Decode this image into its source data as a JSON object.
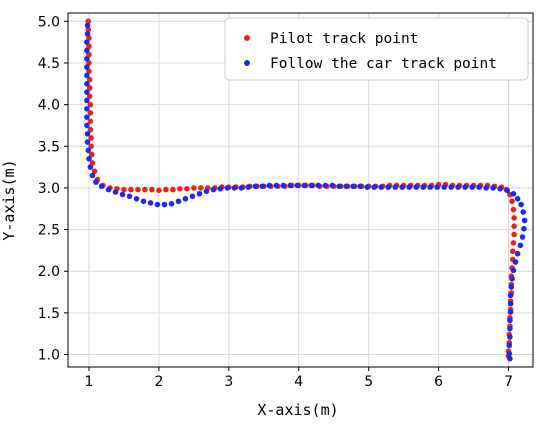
{
  "chart_data": {
    "type": "scatter",
    "title": "",
    "xlabel": "X-axis(m)",
    "ylabel": "Y-axis(m)",
    "xlim": [
      0.7,
      7.35
    ],
    "ylim": [
      0.85,
      5.1
    ],
    "xticks": [
      1,
      2,
      3,
      4,
      5,
      6,
      7
    ],
    "yticks": [
      1.0,
      1.5,
      2.0,
      2.5,
      3.0,
      3.5,
      4.0,
      4.5,
      5.0
    ],
    "xtick_labels": [
      "1",
      "2",
      "3",
      "4",
      "5",
      "6",
      "7"
    ],
    "ytick_labels": [
      "1.0",
      "1.5",
      "2.0",
      "2.5",
      "3.0",
      "3.5",
      "4.0",
      "4.5",
      "5.0"
    ],
    "grid": true,
    "legend_position": "top-right",
    "series": [
      {
        "name": "Pilot track point",
        "color": "#e8231c",
        "points": [
          [
            0.99,
            5.0
          ],
          [
            0.99,
            4.9
          ],
          [
            1.0,
            4.8
          ],
          [
            1.0,
            4.7
          ],
          [
            1.0,
            4.6
          ],
          [
            1.0,
            4.5
          ],
          [
            1.0,
            4.4
          ],
          [
            1.01,
            4.3
          ],
          [
            1.01,
            4.2
          ],
          [
            1.01,
            4.1
          ],
          [
            1.02,
            4.0
          ],
          [
            1.02,
            3.9
          ],
          [
            1.02,
            3.8
          ],
          [
            1.02,
            3.7
          ],
          [
            1.03,
            3.6
          ],
          [
            1.03,
            3.5
          ],
          [
            1.04,
            3.4
          ],
          [
            1.05,
            3.3
          ],
          [
            1.08,
            3.2
          ],
          [
            1.12,
            3.1
          ],
          [
            1.2,
            3.03
          ],
          [
            1.3,
            3.0
          ],
          [
            1.4,
            2.99
          ],
          [
            1.5,
            2.98
          ],
          [
            1.6,
            2.98
          ],
          [
            1.7,
            2.98
          ],
          [
            1.8,
            2.98
          ],
          [
            1.9,
            2.98
          ],
          [
            2.0,
            2.97
          ],
          [
            2.1,
            2.98
          ],
          [
            2.2,
            2.98
          ],
          [
            2.3,
            2.99
          ],
          [
            2.4,
            2.99
          ],
          [
            2.5,
            3.0
          ],
          [
            2.6,
            3.0
          ],
          [
            2.7,
            3.0
          ],
          [
            2.8,
            3.0
          ],
          [
            2.9,
            3.01
          ],
          [
            3.0,
            3.01
          ],
          [
            3.1,
            3.01
          ],
          [
            3.2,
            3.01
          ],
          [
            3.3,
            3.02
          ],
          [
            3.4,
            3.02
          ],
          [
            3.5,
            3.02
          ],
          [
            3.6,
            3.02
          ],
          [
            3.7,
            3.02
          ],
          [
            3.8,
            3.02
          ],
          [
            3.9,
            3.03
          ],
          [
            4.0,
            3.03
          ],
          [
            4.1,
            3.03
          ],
          [
            4.2,
            3.03
          ],
          [
            4.3,
            3.02
          ],
          [
            4.4,
            3.02
          ],
          [
            4.5,
            3.02
          ],
          [
            4.6,
            3.02
          ],
          [
            4.7,
            3.02
          ],
          [
            4.8,
            3.02
          ],
          [
            4.9,
            3.02
          ],
          [
            5.0,
            3.02
          ],
          [
            5.1,
            3.02
          ],
          [
            5.2,
            3.02
          ],
          [
            5.3,
            3.03
          ],
          [
            5.4,
            3.03
          ],
          [
            5.5,
            3.03
          ],
          [
            5.6,
            3.03
          ],
          [
            5.7,
            3.03
          ],
          [
            5.8,
            3.03
          ],
          [
            5.9,
            3.03
          ],
          [
            6.0,
            3.04
          ],
          [
            6.1,
            3.04
          ],
          [
            6.2,
            3.03
          ],
          [
            6.3,
            3.03
          ],
          [
            6.4,
            3.03
          ],
          [
            6.5,
            3.03
          ],
          [
            6.6,
            3.03
          ],
          [
            6.7,
            3.03
          ],
          [
            6.8,
            3.02
          ],
          [
            6.9,
            3.01
          ],
          [
            6.97,
            2.98
          ],
          [
            7.02,
            2.92
          ],
          [
            7.05,
            2.84
          ],
          [
            7.07,
            2.74
          ],
          [
            7.08,
            2.64
          ],
          [
            7.08,
            2.54
          ],
          [
            7.08,
            2.44
          ],
          [
            7.07,
            2.34
          ],
          [
            7.06,
            2.24
          ],
          [
            7.06,
            2.14
          ],
          [
            7.05,
            2.04
          ],
          [
            7.04,
            1.94
          ],
          [
            7.04,
            1.84
          ],
          [
            7.04,
            1.74
          ],
          [
            7.03,
            1.64
          ],
          [
            7.03,
            1.54
          ],
          [
            7.02,
            1.44
          ],
          [
            7.02,
            1.34
          ],
          [
            7.01,
            1.24
          ],
          [
            7.01,
            1.14
          ],
          [
            7.0,
            1.04
          ],
          [
            7.0,
            0.98
          ]
        ]
      },
      {
        "name": "Follow the car track point",
        "color": "#1c2be8",
        "points": [
          [
            0.98,
            4.95
          ],
          [
            0.98,
            4.85
          ],
          [
            0.97,
            4.75
          ],
          [
            0.97,
            4.65
          ],
          [
            0.97,
            4.55
          ],
          [
            0.97,
            4.45
          ],
          [
            0.97,
            4.35
          ],
          [
            0.97,
            4.25
          ],
          [
            0.97,
            4.15
          ],
          [
            0.97,
            4.05
          ],
          [
            0.97,
            3.95
          ],
          [
            0.97,
            3.85
          ],
          [
            0.97,
            3.75
          ],
          [
            0.98,
            3.65
          ],
          [
            0.98,
            3.55
          ],
          [
            0.99,
            3.45
          ],
          [
            1.0,
            3.35
          ],
          [
            1.02,
            3.25
          ],
          [
            1.05,
            3.15
          ],
          [
            1.1,
            3.07
          ],
          [
            1.18,
            3.02
          ],
          [
            1.28,
            2.98
          ],
          [
            1.38,
            2.95
          ],
          [
            1.48,
            2.92
          ],
          [
            1.58,
            2.9
          ],
          [
            1.68,
            2.87
          ],
          [
            1.78,
            2.84
          ],
          [
            1.88,
            2.82
          ],
          [
            1.98,
            2.8
          ],
          [
            2.08,
            2.8
          ],
          [
            2.18,
            2.81
          ],
          [
            2.28,
            2.84
          ],
          [
            2.38,
            2.87
          ],
          [
            2.48,
            2.9
          ],
          [
            2.58,
            2.93
          ],
          [
            2.68,
            2.96
          ],
          [
            2.78,
            2.98
          ],
          [
            2.88,
            2.99
          ],
          [
            2.98,
            3.0
          ],
          [
            3.08,
            3.0
          ],
          [
            3.18,
            3.0
          ],
          [
            3.28,
            3.01
          ],
          [
            3.38,
            3.02
          ],
          [
            3.48,
            3.02
          ],
          [
            3.58,
            3.03
          ],
          [
            3.68,
            3.03
          ],
          [
            3.78,
            3.03
          ],
          [
            3.88,
            3.03
          ],
          [
            3.98,
            3.03
          ],
          [
            4.08,
            3.03
          ],
          [
            4.18,
            3.03
          ],
          [
            4.28,
            3.03
          ],
          [
            4.38,
            3.03
          ],
          [
            4.48,
            3.03
          ],
          [
            4.58,
            3.02
          ],
          [
            4.68,
            3.02
          ],
          [
            4.78,
            3.02
          ],
          [
            4.88,
            3.02
          ],
          [
            4.98,
            3.01
          ],
          [
            5.08,
            3.01
          ],
          [
            5.18,
            3.01
          ],
          [
            5.28,
            3.01
          ],
          [
            5.38,
            3.01
          ],
          [
            5.48,
            3.01
          ],
          [
            5.58,
            3.01
          ],
          [
            5.68,
            3.01
          ],
          [
            5.78,
            3.01
          ],
          [
            5.88,
            3.01
          ],
          [
            5.98,
            3.01
          ],
          [
            6.08,
            3.01
          ],
          [
            6.18,
            3.01
          ],
          [
            6.28,
            3.01
          ],
          [
            6.38,
            3.01
          ],
          [
            6.48,
            3.01
          ],
          [
            6.58,
            3.01
          ],
          [
            6.68,
            3.0
          ],
          [
            6.78,
            3.0
          ],
          [
            6.88,
            2.99
          ],
          [
            6.98,
            2.97
          ],
          [
            7.07,
            2.93
          ],
          [
            7.13,
            2.87
          ],
          [
            7.18,
            2.8
          ],
          [
            7.21,
            2.71
          ],
          [
            7.23,
            2.61
          ],
          [
            7.22,
            2.51
          ],
          [
            7.2,
            2.41
          ],
          [
            7.17,
            2.31
          ],
          [
            7.13,
            2.21
          ],
          [
            7.1,
            2.11
          ],
          [
            7.07,
            2.01
          ],
          [
            7.05,
            1.91
          ],
          [
            7.04,
            1.81
          ],
          [
            7.03,
            1.71
          ],
          [
            7.03,
            1.61
          ],
          [
            7.03,
            1.51
          ],
          [
            7.02,
            1.41
          ],
          [
            7.02,
            1.31
          ],
          [
            7.02,
            1.21
          ],
          [
            7.01,
            1.11
          ],
          [
            7.01,
            1.01
          ],
          [
            7.02,
            0.95
          ]
        ]
      }
    ]
  }
}
